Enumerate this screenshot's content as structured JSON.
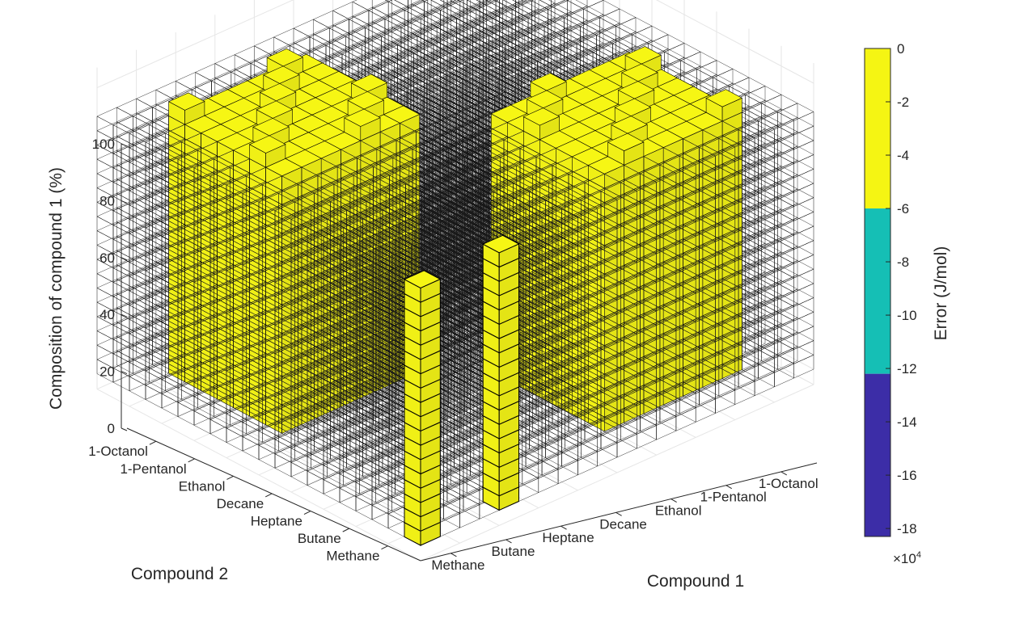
{
  "chart_data": {
    "type": "bar3",
    "title": "",
    "zlabel": "Composition of compound 1 (%)",
    "xlabel": "Compound 1",
    "ylabel": "Compound 2",
    "zlim": [
      0,
      100
    ],
    "z_ticks": [
      "0",
      "20",
      "40",
      "60",
      "80",
      "100"
    ],
    "compound1_ticks": [
      "Methane",
      "Butane",
      "Heptane",
      "Decane",
      "Ethanol",
      "1-Pentanol",
      "1-Octanol"
    ],
    "compound2_ticks": [
      "Methane",
      "Butane",
      "Heptane",
      "Decane",
      "Ethanol",
      "1-Pentanol",
      "1-Octanol"
    ],
    "highlighted_columns": [
      {
        "compound1": "Methane",
        "compound2": "Methane",
        "composition_range": [
          0,
          90
        ],
        "error_group": "0 to -6"
      },
      {
        "compound1": "Butane",
        "compound2": "Methane",
        "composition_range": [
          0,
          90
        ],
        "error_group": "0 to -6"
      }
    ],
    "colorbar": {
      "label": "Error (J/mol)",
      "multiplier": "×10",
      "multiplier_exponent": "4",
      "range": [
        -18.3,
        0
      ],
      "ticks": [
        "0",
        "-2",
        "-4",
        "-6",
        "-8",
        "-10",
        "-12",
        "-14",
        "-16",
        "-18"
      ],
      "bands": [
        {
          "from": -6,
          "to": 0,
          "color": "#F5F513"
        },
        {
          "from": -12.2,
          "to": -6,
          "color": "#15BFB5"
        },
        {
          "from": -18.3,
          "to": -12.2,
          "color": "#3C2DA7"
        }
      ]
    }
  }
}
